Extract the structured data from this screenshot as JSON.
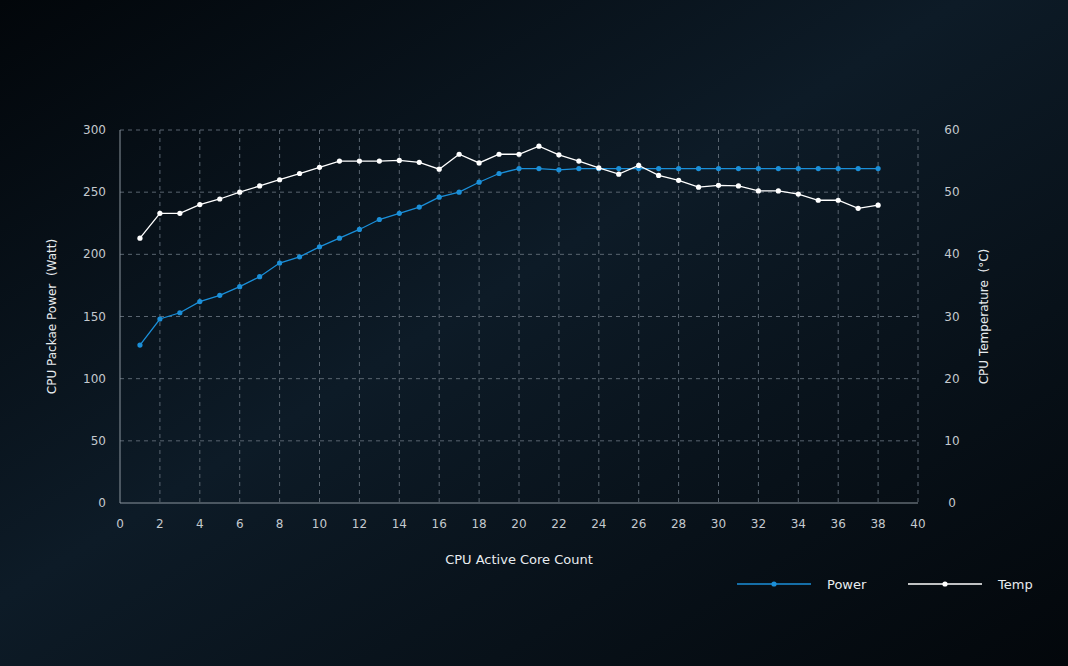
{
  "chart_data": {
    "type": "line",
    "x_label": "CPU Active Core Count",
    "y_label": "CPU Packae Power  (Watt)",
    "y2_label": "CPU Temperature  (°C)",
    "x": [
      1,
      2,
      3,
      4,
      5,
      6,
      7,
      8,
      9,
      10,
      11,
      12,
      13,
      14,
      15,
      16,
      17,
      18,
      19,
      20,
      21,
      22,
      23,
      24,
      25,
      26,
      27,
      28,
      29,
      30,
      31,
      32,
      33,
      34,
      35,
      36,
      37,
      38
    ],
    "series": [
      {
        "name": "Power",
        "color": "#1b8fd8",
        "marker": "circle",
        "axis": "y",
        "values": [
          127,
          148,
          153,
          162,
          167,
          174,
          182,
          193,
          198,
          206,
          213,
          220,
          228,
          233,
          238,
          246,
          250,
          258,
          265,
          269,
          269,
          268,
          269,
          269,
          269,
          269,
          269,
          269,
          269,
          269,
          269,
          269,
          269,
          269,
          269,
          269,
          269,
          269
        ]
      },
      {
        "name": "Temp",
        "color": "#ffffff",
        "marker": "circle",
        "axis": "y2",
        "values": [
          42.6,
          46.6,
          46.6,
          48,
          48.9,
          50,
          51,
          52,
          53,
          54,
          55,
          55,
          55,
          55.1,
          54.8,
          53.7,
          56.1,
          54.7,
          56.1,
          56.1,
          57.4,
          56,
          55,
          53.9,
          52.9,
          54.3,
          52.7,
          51.9,
          50.8,
          51.1,
          51,
          50.2,
          50.2,
          49.7,
          48.7,
          48.7,
          47.4,
          47.9
        ]
      }
    ],
    "xlim": [
      0,
      40
    ],
    "xticks": [
      0,
      2,
      4,
      6,
      8,
      10,
      12,
      14,
      16,
      18,
      20,
      22,
      24,
      26,
      28,
      30,
      32,
      34,
      36,
      38,
      40
    ],
    "ylim": [
      0,
      300
    ],
    "yticks": [
      0,
      50,
      100,
      150,
      200,
      250,
      300
    ],
    "y2lim": [
      0,
      60
    ],
    "y2ticks": [
      0,
      10,
      20,
      30,
      40,
      50,
      60
    ],
    "grid": true,
    "legend": "bottom right"
  }
}
